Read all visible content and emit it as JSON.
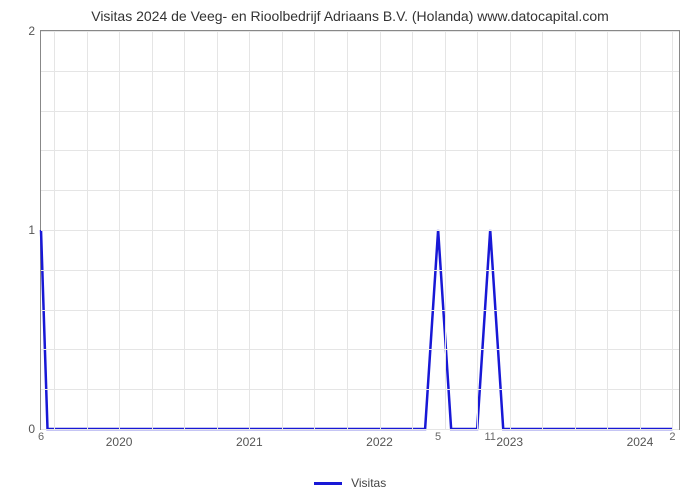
{
  "chart": {
    "type": "line",
    "title": "Visitas 2024 de Veeg- en Rioolbedrijf Adriaans B.V. (Holanda) www.datocapital.com",
    "title_fontsize": 14,
    "background_color": "#ffffff",
    "grid_color": "#e5e5e5",
    "border_color": "#888888",
    "line_color": "#1818d6",
    "line_width": 2.5,
    "xlim": [
      2019.4,
      2024.3
    ],
    "ylim": [
      0,
      2
    ],
    "yticks": [
      0,
      1,
      2
    ],
    "y_minor_divisions": 5,
    "xticks": [
      2020,
      2021,
      2022,
      2023,
      2024
    ],
    "x_minor_per_major": 4,
    "legend_label": "Visitas",
    "top_annotations": [
      {
        "x": 2019.4,
        "text": "6"
      },
      {
        "x": 2022.45,
        "text": "5"
      },
      {
        "x": 2022.85,
        "text": "11"
      },
      {
        "x": 2024.25,
        "text": "2"
      }
    ],
    "series": [
      {
        "x": 2019.4,
        "y": 1.0
      },
      {
        "x": 2019.45,
        "y": 0.0
      },
      {
        "x": 2022.35,
        "y": 0.0
      },
      {
        "x": 2022.45,
        "y": 1.0
      },
      {
        "x": 2022.55,
        "y": 0.0
      },
      {
        "x": 2022.75,
        "y": 0.0
      },
      {
        "x": 2022.85,
        "y": 1.0
      },
      {
        "x": 2022.95,
        "y": 0.0
      },
      {
        "x": 2024.25,
        "y": 0.0
      }
    ]
  }
}
